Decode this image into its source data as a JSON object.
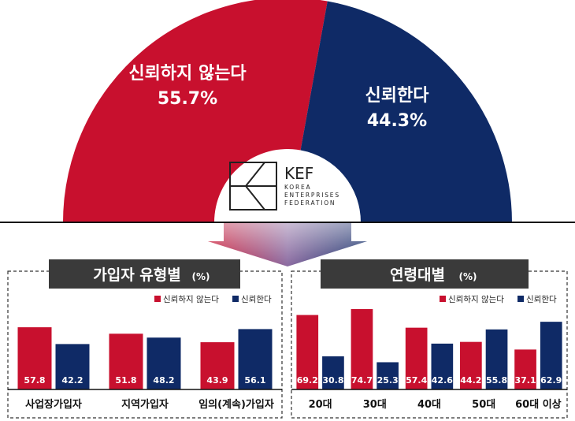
{
  "colors": {
    "distrust": "#c8102e",
    "trust": "#0f2a66",
    "title_box": "#3a3a3a"
  },
  "logo": {
    "name": "KEF",
    "line1": "KOREA",
    "line2": "ENTERPRISES",
    "line3": "FEDERATION"
  },
  "chart_data": [
    {
      "type": "pie",
      "slices": [
        {
          "label": "신뢰하지 않는다",
          "value": 55.7,
          "display": "55.7%"
        },
        {
          "label": "신뢰한다",
          "value": 44.3,
          "display": "44.3%"
        }
      ]
    },
    {
      "type": "bar",
      "title": "가입자 유형별",
      "title_unit": "(%)",
      "categories": [
        "사업장가입자",
        "지역가입자",
        "임의(계속)가입자"
      ],
      "series": [
        {
          "name": "신뢰하지 않는다",
          "values": [
            57.8,
            51.8,
            43.9
          ]
        },
        {
          "name": "신뢰한다",
          "values": [
            42.2,
            48.2,
            56.1
          ]
        }
      ],
      "ylim": [
        0,
        100
      ]
    },
    {
      "type": "bar",
      "title": "연령대별",
      "title_unit": "(%)",
      "categories": [
        "20대",
        "30대",
        "40대",
        "50대",
        "60대 이상"
      ],
      "series": [
        {
          "name": "신뢰하지 않는다",
          "values": [
            69.2,
            74.7,
            57.4,
            44.2,
            37.1
          ]
        },
        {
          "name": "신뢰한다",
          "values": [
            30.8,
            25.3,
            42.6,
            55.8,
            62.9
          ]
        }
      ],
      "ylim": [
        0,
        100
      ]
    }
  ]
}
